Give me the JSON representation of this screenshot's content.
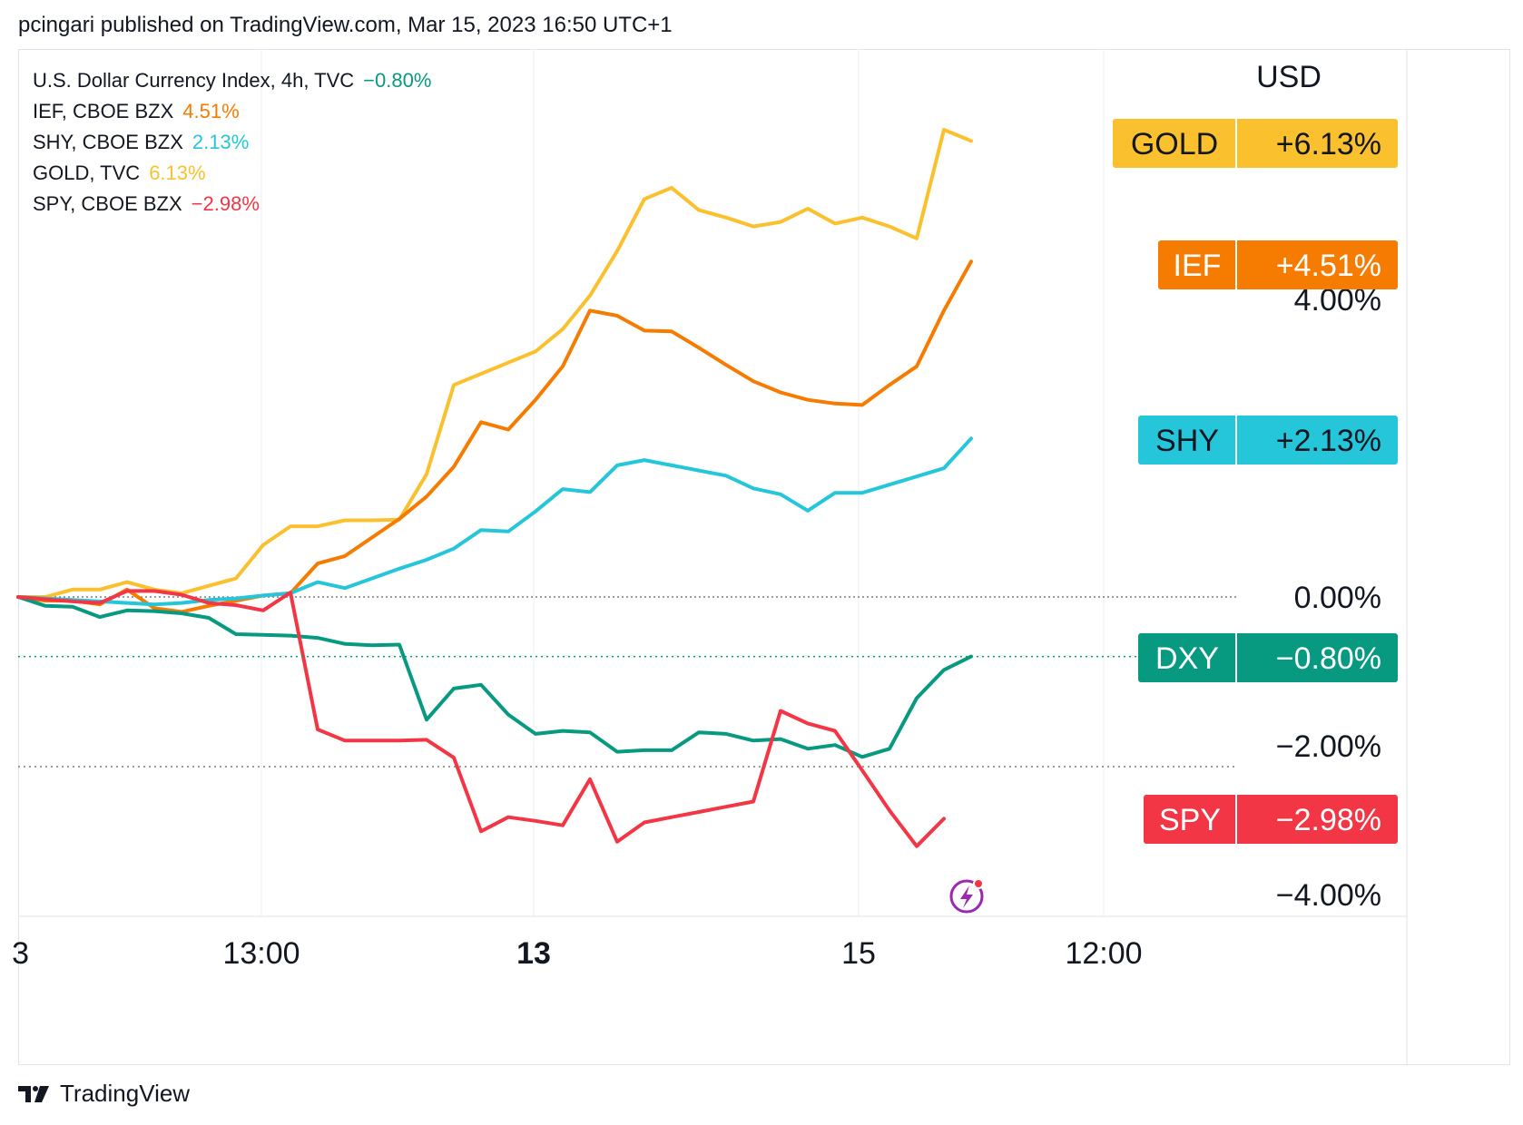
{
  "header": {
    "text": "pcingari published on TradingView.com, Mar 15, 2023 16:50 UTC+1"
  },
  "footer": {
    "brand": "TradingView"
  },
  "icons": {
    "logo": "tradingview-logo-icon",
    "alert": "lightning-alert-icon"
  },
  "legend": [
    {
      "label": "U.S. Dollar Currency Index, 4h, TVC",
      "value": "−0.80%",
      "color": "#089981"
    },
    {
      "label": "IEF, CBOE BZX",
      "value": "4.51%",
      "color": "#f57c00"
    },
    {
      "label": "SHY, CBOE BZX",
      "value": "2.13%",
      "color": "#26c6da"
    },
    {
      "label": "GOLD, TVC",
      "value": "6.13%",
      "color": "#fbc02d"
    },
    {
      "label": "SPY, CBOE BZX",
      "value": "−2.98%",
      "color": "#f23645"
    }
  ],
  "chart_data": {
    "type": "line",
    "scale_label": "USD",
    "yaxis_ticks": [
      "4.00%",
      "0.00%",
      "−2.00%",
      "−4.00%"
    ],
    "yaxis_tick_values": [
      4,
      0,
      -2,
      -4
    ],
    "xaxis_ticks": [
      {
        "label": "3",
        "bold": false
      },
      {
        "label": "13:00",
        "bold": false
      },
      {
        "label": "13",
        "bold": true
      },
      {
        "label": "15",
        "bold": false
      },
      {
        "label": "12:00",
        "bold": false
      }
    ],
    "ylim": [
      -4.3,
      7.0
    ],
    "series": [
      {
        "ticker": "GOLD",
        "badge": "+6.13%",
        "color": "#fbc02d",
        "badge_text": "#131722",
        "values": [
          0,
          0,
          0.1,
          0.1,
          0.2,
          0.1,
          0.05,
          0.15,
          0.25,
          0.7,
          0.95,
          0.95,
          1.03,
          1.03,
          1.04,
          1.65,
          2.85,
          3.0,
          3.15,
          3.3,
          3.6,
          4.05,
          4.65,
          5.35,
          5.5,
          5.2,
          5.1,
          4.98,
          5.04,
          5.22,
          5.02,
          5.1,
          4.98,
          4.82,
          6.28,
          6.13
        ]
      },
      {
        "ticker": "IEF",
        "badge": "+4.51%",
        "color": "#f57c00",
        "badge_text": "#ffffff",
        "values": [
          0,
          -0.05,
          -0.05,
          -0.1,
          0.1,
          -0.15,
          -0.2,
          -0.12,
          -0.05,
          0.02,
          0.05,
          0.45,
          0.55,
          0.8,
          1.05,
          1.35,
          1.75,
          2.35,
          2.25,
          2.65,
          3.1,
          3.85,
          3.78,
          3.58,
          3.57,
          3.35,
          3.12,
          2.9,
          2.75,
          2.65,
          2.6,
          2.58,
          2.85,
          3.1,
          3.85,
          4.51
        ]
      },
      {
        "ticker": "SHY",
        "badge": "+2.13%",
        "color": "#26c6da",
        "badge_text": "#131722",
        "values": [
          0,
          -0.02,
          -0.04,
          -0.06,
          -0.08,
          -0.1,
          -0.08,
          -0.04,
          -0.02,
          0.02,
          0.05,
          0.2,
          0.12,
          0.25,
          0.38,
          0.5,
          0.65,
          0.9,
          0.88,
          1.15,
          1.45,
          1.41,
          1.77,
          1.84,
          1.77,
          1.7,
          1.63,
          1.46,
          1.38,
          1.16,
          1.4,
          1.4,
          1.51,
          1.62,
          1.73,
          2.13
        ]
      },
      {
        "ticker": "DXY",
        "badge": "−0.80%",
        "color": "#089981",
        "badge_text": "#ffffff",
        "values": [
          0,
          -0.12,
          -0.13,
          -0.27,
          -0.18,
          -0.19,
          -0.22,
          -0.28,
          -0.5,
          -0.51,
          -0.52,
          -0.55,
          -0.63,
          -0.65,
          -0.64,
          -1.65,
          -1.23,
          -1.18,
          -1.58,
          -1.84,
          -1.8,
          -1.82,
          -2.08,
          -2.06,
          -2.06,
          -1.82,
          -1.84,
          -1.93,
          -1.91,
          -2.04,
          -1.99,
          -2.15,
          -2.04,
          -1.36,
          -0.98,
          -0.8
        ]
      },
      {
        "ticker": "SPY",
        "badge": "−2.98%",
        "color": "#f23645",
        "badge_text": "#ffffff",
        "values": [
          0,
          -0.03,
          -0.06,
          -0.08,
          0.08,
          0.08,
          0.03,
          -0.08,
          -0.11,
          -0.18,
          0.06,
          -1.78,
          -1.93,
          -1.93,
          -1.93,
          -1.92,
          -2.16,
          -3.15,
          -2.96,
          -3.01,
          -3.07,
          -2.45,
          -3.29,
          -3.03,
          -2.96,
          -2.89,
          -2.82,
          -2.75,
          -1.53,
          -1.7,
          -1.8,
          -2.33,
          -2.87,
          -3.35,
          -2.98
        ]
      }
    ]
  }
}
